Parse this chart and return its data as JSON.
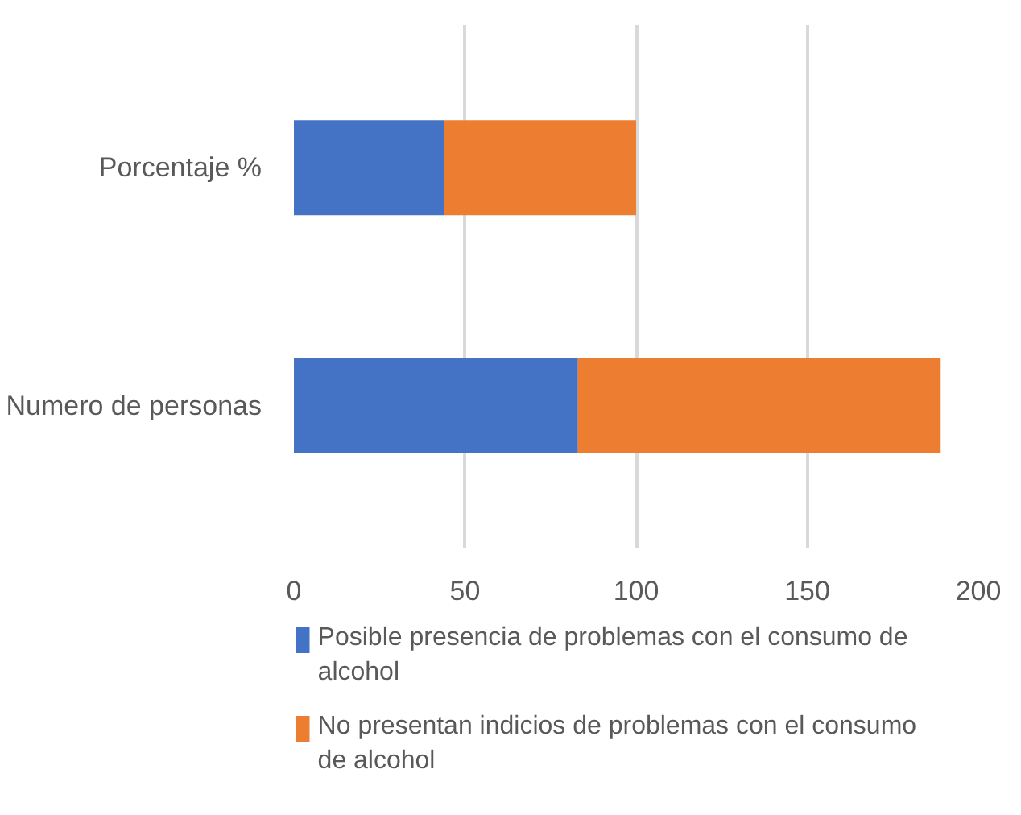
{
  "chart_data": {
    "type": "bar",
    "orientation": "horizontal",
    "stacked": true,
    "categories": [
      "Porcentaje %",
      "Numero de personas"
    ],
    "series": [
      {
        "name": "Posible presencia de problemas con el  consumo de alcohol",
        "color": "#4472c4",
        "values": [
          44,
          83
        ]
      },
      {
        "name": "No presentan indicios de problemas con el consumo de alcohol",
        "color": "#ed7d31",
        "values": [
          56,
          106
        ]
      }
    ],
    "xlim": [
      0,
      200
    ],
    "xticks": [
      0,
      50,
      100,
      150,
      200
    ],
    "grid": "x",
    "legend": "bottom"
  }
}
